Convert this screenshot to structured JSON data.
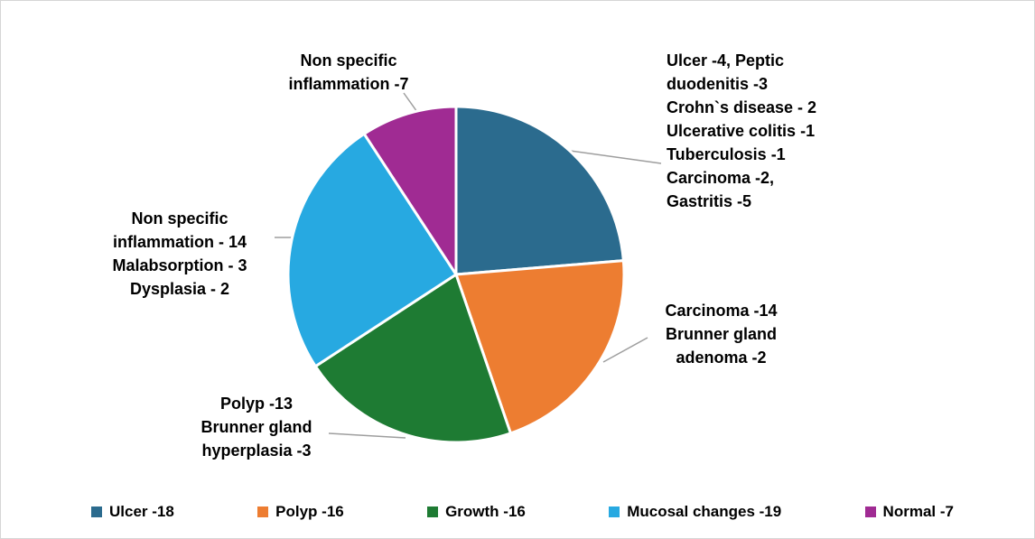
{
  "chart_data": {
    "type": "pie",
    "title": "",
    "categories": [
      "Ulcer -18",
      "Polyp -16",
      "Growth -16",
      "Mucosal changes -19",
      "Normal -7"
    ],
    "values": [
      18,
      16,
      16,
      19,
      7
    ],
    "colors": [
      "#2b6b8e",
      "#ed7d31",
      "#1e7b33",
      "#27a9e1",
      "#a02b93"
    ],
    "start_angle_deg": 0,
    "direction": "clockwise",
    "legend_position": "bottom",
    "annotations": [
      {
        "slice": "Ulcer -18",
        "text": "Ulcer -4, Peptic\nduodenitis -3\nCrohn`s disease - 2\nUlcerative colitis -1\nTuberculosis -1\nCarcinoma -2,\nGastritis -5"
      },
      {
        "slice": "Polyp -16",
        "text": "Carcinoma -14\nBrunner gland\nadenoma -2"
      },
      {
        "slice": "Growth -16",
        "text": "Polyp -13\nBrunner gland\nhyperplasia -3"
      },
      {
        "slice": "Mucosal changes -19",
        "text": "Non specific\ninflammation - 14\nMalabsorption - 3\nDysplasia - 2"
      },
      {
        "slice": "Normal -7",
        "text": "Non specific\ninflammation -7"
      }
    ]
  },
  "legend": {
    "items": [
      {
        "label": "Ulcer -18",
        "color": "#2b6b8e"
      },
      {
        "label": "Polyp -16",
        "color": "#ed7d31"
      },
      {
        "label": "Growth -16",
        "color": "#1e7b33"
      },
      {
        "label": "Mucosal changes -19",
        "color": "#27a9e1"
      },
      {
        "label": "Normal -7",
        "color": "#a02b93"
      }
    ]
  }
}
